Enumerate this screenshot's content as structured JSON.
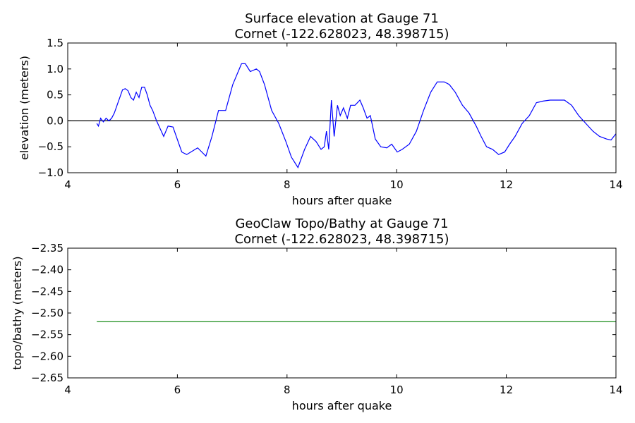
{
  "chart_data": [
    {
      "type": "line",
      "title": [
        "Surface elevation at Gauge 71",
        "Cornet  (-122.628023, 48.398715)"
      ],
      "x_label": "hours after quake",
      "y_label": "elevation (meters)",
      "xlim": [
        4,
        14
      ],
      "ylim": [
        -1.0,
        1.5
      ],
      "xticks": [
        4,
        6,
        8,
        10,
        12,
        14
      ],
      "yticks": [
        {
          "value": -1.0,
          "label": "−1.0"
        },
        {
          "value": -0.5,
          "label": "−0.5"
        },
        {
          "value": 0,
          "label": "0.0"
        },
        {
          "value": 0.5,
          "label": "0.5"
        },
        {
          "value": 1.0,
          "label": "1.0"
        },
        {
          "value": 1.5,
          "label": "1.5"
        }
      ],
      "reference_line": 0,
      "reference_color": "#000000",
      "x": [
        4.53,
        4.56,
        4.6,
        4.65,
        4.7,
        4.75,
        4.8,
        4.85,
        4.9,
        4.95,
        5.0,
        5.05,
        5.1,
        5.15,
        5.2,
        5.25,
        5.3,
        5.35,
        5.4,
        5.45,
        5.5,
        5.55,
        5.62,
        5.75,
        5.83,
        5.92,
        6.08,
        6.17,
        6.37,
        6.52,
        6.63,
        6.75,
        6.88,
        7.01,
        7.17,
        7.24,
        7.33,
        7.44,
        7.5,
        7.59,
        7.72,
        7.85,
        7.98,
        8.08,
        8.2,
        8.32,
        8.43,
        8.53,
        8.62,
        8.68,
        8.72,
        8.76,
        8.81,
        8.86,
        8.92,
        8.97,
        9.03,
        9.1,
        9.16,
        9.24,
        9.33,
        9.39,
        9.46,
        9.52,
        9.61,
        9.71,
        9.82,
        9.91,
        10.01,
        10.1,
        10.23,
        10.36,
        10.49,
        10.62,
        10.74,
        10.87,
        10.96,
        11.07,
        11.2,
        11.32,
        11.45,
        11.54,
        11.64,
        11.75,
        11.86,
        11.97,
        12.06,
        12.16,
        12.29,
        12.42,
        12.55,
        12.67,
        12.8,
        12.93,
        13.06,
        13.19,
        13.32,
        13.45,
        13.58,
        13.7,
        13.83,
        13.91,
        14.0
      ],
      "series": [
        {
          "name": "elevation",
          "color": "#0000ff",
          "values": [
            -0.05,
            -0.1,
            0.05,
            -0.02,
            0.05,
            0.0,
            0.05,
            0.15,
            0.3,
            0.45,
            0.6,
            0.62,
            0.58,
            0.45,
            0.4,
            0.55,
            0.45,
            0.65,
            0.65,
            0.5,
            0.3,
            0.2,
            0.0,
            -0.3,
            -0.1,
            -0.12,
            -0.6,
            -0.65,
            -0.52,
            -0.68,
            -0.3,
            0.2,
            0.2,
            0.7,
            1.1,
            1.1,
            0.95,
            1.0,
            0.95,
            0.7,
            0.2,
            -0.05,
            -0.4,
            -0.7,
            -0.9,
            -0.55,
            -0.3,
            -0.4,
            -0.55,
            -0.5,
            -0.2,
            -0.55,
            0.4,
            -0.3,
            0.3,
            0.1,
            0.25,
            0.05,
            0.3,
            0.3,
            0.4,
            0.25,
            0.05,
            0.1,
            -0.35,
            -0.5,
            -0.52,
            -0.45,
            -0.6,
            -0.55,
            -0.45,
            -0.2,
            0.2,
            0.55,
            0.75,
            0.75,
            0.7,
            0.55,
            0.3,
            0.15,
            -0.1,
            -0.3,
            -0.5,
            -0.55,
            -0.65,
            -0.6,
            -0.45,
            -0.3,
            -0.05,
            0.1,
            0.35,
            0.38,
            0.4,
            0.4,
            0.4,
            0.3,
            0.1,
            -0.05,
            -0.2,
            -0.3,
            -0.35,
            -0.37,
            -0.25
          ]
        }
      ]
    },
    {
      "type": "line",
      "title": [
        "GeoClaw Topo/Bathy at Gauge 71",
        "Cornet  (-122.628023, 48.398715)"
      ],
      "x_label": "hours after quake",
      "y_label": "topo/bathy (meters)",
      "xlim": [
        4,
        14
      ],
      "ylim": [
        -2.65,
        -2.35
      ],
      "xticks": [
        4,
        6,
        8,
        10,
        12,
        14
      ],
      "yticks": [
        {
          "value": -2.65,
          "label": "−2.65"
        },
        {
          "value": -2.6,
          "label": "−2.60"
        },
        {
          "value": -2.55,
          "label": "−2.55"
        },
        {
          "value": -2.5,
          "label": "−2.50"
        },
        {
          "value": -2.45,
          "label": "−2.45"
        },
        {
          "value": -2.4,
          "label": "−2.40"
        },
        {
          "value": -2.35,
          "label": "−2.35"
        }
      ],
      "x": [
        4.53,
        14.0
      ],
      "series": [
        {
          "name": "topo/bathy",
          "color": "#008000",
          "values": [
            -2.52,
            -2.52
          ]
        }
      ]
    }
  ]
}
